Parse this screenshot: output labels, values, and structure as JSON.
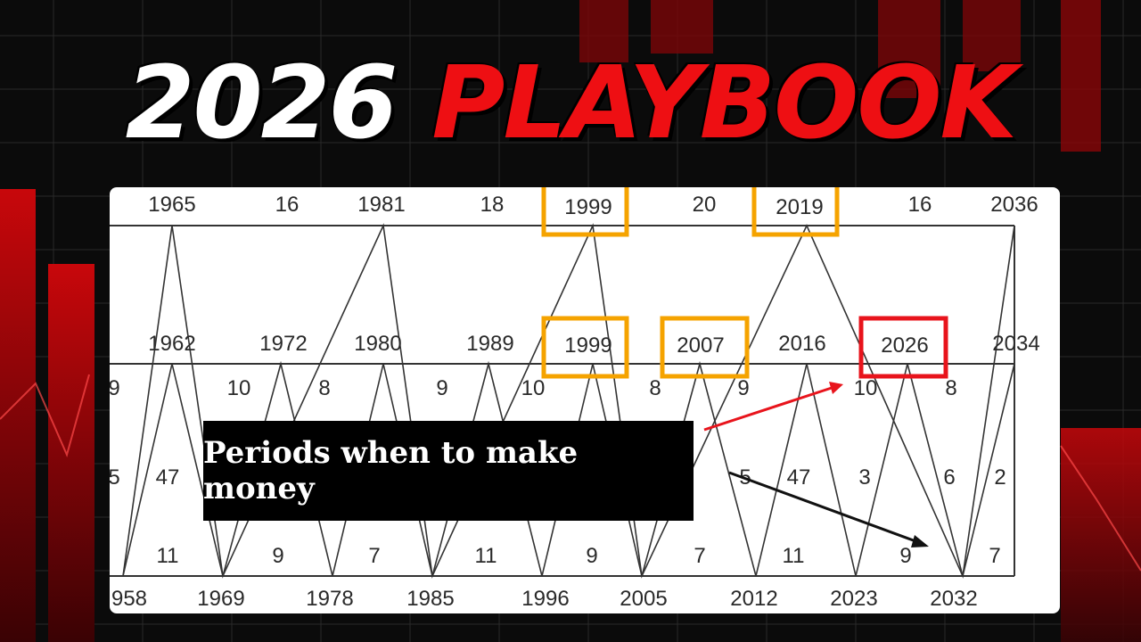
{
  "title": {
    "part1": "2026",
    "part2": "PLAYBOOK"
  },
  "colors": {
    "accent_red": "#ee0f13",
    "highlight_orange": "#f5a300",
    "target_red": "#e8141c",
    "background": "#0b0b0b"
  },
  "caption": "Periods when to make money",
  "chart": {
    "top_row_labels": [
      "1965",
      "16",
      "1981",
      "18",
      "1999",
      "20",
      "2019",
      "16",
      "2036"
    ],
    "middle_row_labels": [
      "1962",
      "1972",
      "1980",
      "1989",
      "1999",
      "2007",
      "2016",
      "2026",
      "2034"
    ],
    "middle_left_cut": "9",
    "intervals_upper": [
      "10",
      "8",
      "9",
      "10",
      "8",
      "9",
      "10",
      "8"
    ],
    "intervals_mid": [
      "5",
      "47",
      "5",
      "47",
      "3",
      "6",
      "2"
    ],
    "intervals_lower": [
      "11",
      "9",
      "7",
      "11",
      "9",
      "7",
      "11",
      "9",
      "7"
    ],
    "bottom_row_labels": [
      "958",
      "1969",
      "1978",
      "1985",
      "1996",
      "2005",
      "2012",
      "2023",
      "2032"
    ],
    "highlighted_orange": [
      "1999",
      "1999",
      "2007",
      "2019"
    ],
    "highlighted_red": [
      "2026"
    ]
  }
}
